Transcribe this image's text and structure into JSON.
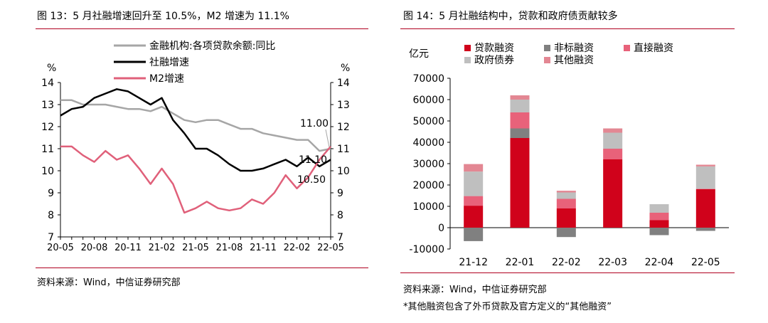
{
  "left": {
    "title": "图 13：5 月社融增速回升至 10.5%，M2 增速为 11.1%",
    "source": "资料来源：Wind，中信证券研究部"
  },
  "right": {
    "title": "图 14：5 月社融结构中，贷款和政府债贡献较多",
    "source": "资料来源：Wind，中信证券研究部",
    "note": "*其他融资包含了外币贷款及官方定义的“其他融资”"
  },
  "chart_data": [
    {
      "type": "line",
      "title": "",
      "ylabel_left": "%",
      "ylabel_right": "%",
      "ylim": [
        7,
        14
      ],
      "yticks": [
        7,
        8,
        9,
        10,
        11,
        12,
        13,
        14
      ],
      "x_tick_labels": [
        "20-05",
        "20-08",
        "20-11",
        "21-02",
        "21-05",
        "21-08",
        "21-11",
        "22-02",
        "22-05"
      ],
      "x": [
        "20-05",
        "20-06",
        "20-07",
        "20-08",
        "20-09",
        "20-10",
        "20-11",
        "20-12",
        "21-01",
        "21-02",
        "21-03",
        "21-04",
        "21-05",
        "21-06",
        "21-07",
        "21-08",
        "21-09",
        "21-10",
        "21-11",
        "21-12",
        "22-01",
        "22-02",
        "22-03",
        "22-04",
        "22-05"
      ],
      "series": [
        {
          "name": "金融机构:各项贷款余额:同比",
          "color": "#a6a6a6",
          "values": [
            13.2,
            13.2,
            13.0,
            13.0,
            13.0,
            12.9,
            12.8,
            12.8,
            12.7,
            12.9,
            12.6,
            12.3,
            12.2,
            12.3,
            12.3,
            12.1,
            11.9,
            11.9,
            11.7,
            11.6,
            11.5,
            11.4,
            11.4,
            10.9,
            11.0
          ]
        },
        {
          "name": "社融增速",
          "color": "#000000",
          "values": [
            12.5,
            12.8,
            12.9,
            13.3,
            13.5,
            13.7,
            13.6,
            13.3,
            13.0,
            13.3,
            12.3,
            11.7,
            11.0,
            11.0,
            10.7,
            10.3,
            10.0,
            10.0,
            10.1,
            10.3,
            10.5,
            10.2,
            10.6,
            10.2,
            10.5
          ]
        },
        {
          "name": "M2增速",
          "color": "#e0607a",
          "values": [
            11.1,
            11.1,
            10.7,
            10.4,
            10.9,
            10.5,
            10.7,
            10.1,
            9.4,
            10.1,
            9.4,
            8.1,
            8.3,
            8.6,
            8.3,
            8.2,
            8.3,
            8.7,
            8.5,
            9.0,
            9.8,
            9.2,
            9.7,
            10.5,
            11.1
          ]
        }
      ],
      "annotations": [
        {
          "text": "11.00",
          "series": "金融机构:各项贷款余额:同比",
          "value": 11.0
        },
        {
          "text": "11.10",
          "series": "M2增速",
          "value": 11.1
        },
        {
          "text": "10.50",
          "series": "社融增速",
          "value": 10.5
        }
      ],
      "legend": "top-center",
      "grid": false
    },
    {
      "type": "bar",
      "stacked": true,
      "title": "",
      "ylabel": "亿元",
      "ylim": [
        -10000,
        70000
      ],
      "yticks": [
        -10000,
        0,
        10000,
        20000,
        30000,
        40000,
        50000,
        60000,
        70000
      ],
      "categories": [
        "21-12",
        "22-01",
        "22-02",
        "22-03",
        "22-04",
        "22-05"
      ],
      "series": [
        {
          "name": "贷款融资",
          "color": "#d0021b",
          "values": [
            10300,
            42000,
            9000,
            32000,
            3500,
            18000
          ]
        },
        {
          "name": "非标融资",
          "color": "#808080",
          "values": [
            -6300,
            4500,
            -4400,
            0,
            -3500,
            -1500
          ]
        },
        {
          "name": "直接融资",
          "color": "#e8627a",
          "values": [
            4500,
            7500,
            4500,
            5000,
            3500,
            200
          ]
        },
        {
          "name": "政府债券",
          "color": "#bfbfbf",
          "values": [
            11500,
            6000,
            3000,
            7500,
            4000,
            10500
          ]
        },
        {
          "name": "其他融资",
          "color": "#e38793",
          "values": [
            3500,
            2000,
            800,
            2000,
            0,
            800
          ]
        }
      ],
      "legend": "top",
      "grid": false
    }
  ]
}
